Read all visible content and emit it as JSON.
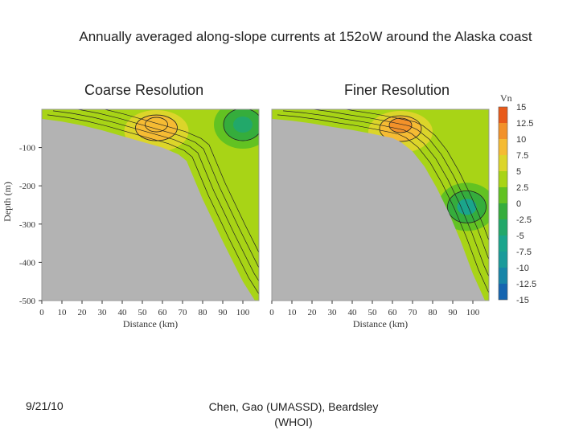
{
  "slide": {
    "title": "Annually averaged along-slope currents at 152oW around the Alaska coast",
    "date": "9/21/10",
    "credit": "Chen, Gao (UMASSD), Beardsley (WHOI)"
  },
  "chart_data": [
    {
      "type": "heatmap",
      "title": "Coarse Resolution",
      "xlabel": "Distance (km)",
      "ylabel": "Depth (m)",
      "xlim": [
        0,
        108
      ],
      "ylim": [
        -500,
        0
      ],
      "xticks": [
        0,
        10,
        20,
        30,
        40,
        50,
        60,
        70,
        80,
        90,
        100
      ],
      "yticks": [
        -100,
        -200,
        -300,
        -400,
        -500
      ],
      "bathymetry": {
        "x": [
          0,
          10,
          20,
          30,
          40,
          50,
          60,
          68,
          72,
          80,
          90,
          100,
          106
        ],
        "depth": [
          -25,
          -32,
          -42,
          -55,
          -70,
          -85,
          -100,
          -118,
          -135,
          -235,
          -345,
          -450,
          -500
        ]
      },
      "features": [
        {
          "kind": "max",
          "x": 57,
          "depth": -40,
          "value": 8
        },
        {
          "kind": "min",
          "x": 100,
          "depth": -40,
          "value": -3
        }
      ]
    },
    {
      "type": "heatmap",
      "title": "Finer Resolution",
      "xlabel": "Distance (km)",
      "ylabel": "",
      "xlim": [
        0,
        108
      ],
      "ylim": [
        -500,
        0
      ],
      "xticks": [
        0,
        10,
        20,
        30,
        40,
        50,
        60,
        70,
        80,
        90,
        100
      ],
      "yticks": [],
      "bathymetry": {
        "x": [
          0,
          10,
          20,
          30,
          40,
          50,
          60,
          64,
          70,
          76,
          82,
          88,
          94,
          100,
          106
        ],
        "depth": [
          -25,
          -30,
          -37,
          -46,
          -54,
          -64,
          -75,
          -85,
          -110,
          -150,
          -205,
          -270,
          -345,
          -430,
          -500
        ]
      },
      "features": [
        {
          "kind": "max",
          "x": 64,
          "depth": -42,
          "value": 11
        },
        {
          "kind": "min",
          "x": 97,
          "depth": -255,
          "value": -7
        }
      ]
    }
  ],
  "colorbar": {
    "label": "Vn",
    "ticks": [
      "15",
      "12.5",
      "10",
      "7.5",
      "5",
      "2.5",
      "0",
      "-2.5",
      "-5",
      "-7.5",
      "-10",
      "-12.5",
      "-15"
    ],
    "colors": [
      "#e85a1a",
      "#f2912a",
      "#f5bb33",
      "#dcd52a",
      "#a8d416",
      "#62c222",
      "#35ad3c",
      "#22a86a",
      "#1aa58c",
      "#1a9a9a",
      "#1785a8",
      "#1565b0"
    ]
  }
}
